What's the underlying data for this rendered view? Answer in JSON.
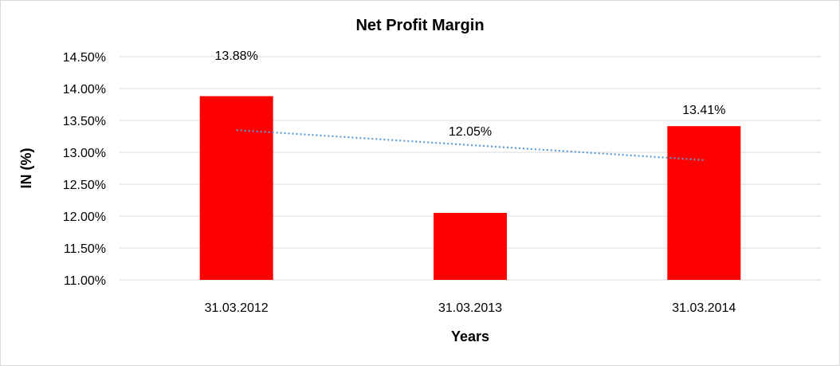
{
  "chart_data": {
    "type": "bar",
    "title": "Net Profit Margin",
    "xlabel": "Years",
    "ylabel": "IN (%)",
    "categories": [
      "31.03.2012",
      "31.03.2013",
      "31.03.2014"
    ],
    "values": [
      13.88,
      12.05,
      13.41
    ],
    "data_labels": [
      "13.88%",
      "12.05%",
      "13.41%"
    ],
    "ylim": [
      11.0,
      14.5
    ],
    "yticks": [
      "11.00%",
      "11.50%",
      "12.00%",
      "12.50%",
      "13.00%",
      "13.50%",
      "14.00%",
      "14.50%"
    ],
    "grid": true,
    "trendline": "linear",
    "legend": "none",
    "colors": {
      "bar": "#ff0000",
      "trendline": "#5b9bd5",
      "grid": "#d9d9d9"
    }
  }
}
